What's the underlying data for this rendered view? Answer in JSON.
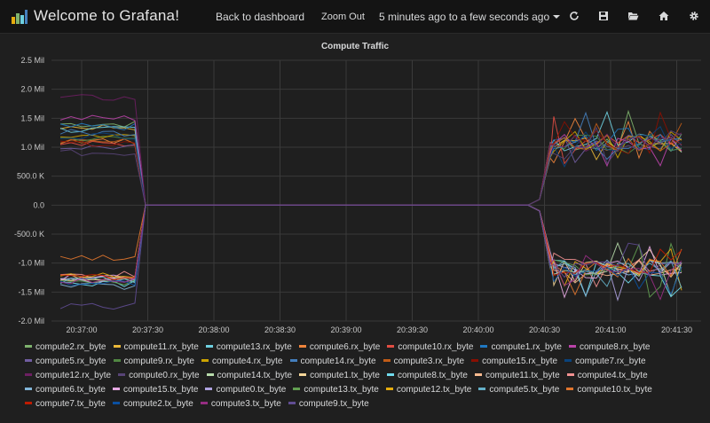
{
  "header": {
    "title": "Welcome to Grafana!",
    "back_label": "Back to dashboard",
    "zoom_label": "Zoom Out",
    "time_range": "5 minutes ago to a few seconds ago",
    "icons": [
      "refresh-icon",
      "save-icon",
      "folder-open-icon",
      "home-icon",
      "gear-icon"
    ]
  },
  "chart_data": {
    "type": "line",
    "title": "Compute Traffic",
    "y_ticks": [
      "2.5 Mil",
      "2.0 Mil",
      "1.5 Mil",
      "1.0 Mil",
      "500.0 K",
      "0.0",
      "-500.0 K",
      "-1.0 Mil",
      "-1.5 Mil",
      "-2.0 Mil"
    ],
    "x_ticks": [
      "20:37:00",
      "20:37:30",
      "20:38:00",
      "20:38:30",
      "20:39:00",
      "20:39:30",
      "20:40:00",
      "20:40:30",
      "20:41:00",
      "20:41:30"
    ],
    "ylim": [
      -2000000,
      2500000
    ],
    "grid": true,
    "legend_placement": "bottom",
    "series": [
      {
        "name": "compute2.rx_byte",
        "color": "#7eb26d",
        "rx": true,
        "level": 1.4
      },
      {
        "name": "compute11.rx_byte",
        "color": "#eab839",
        "rx": true,
        "level": 1.35
      },
      {
        "name": "compute13.rx_byte",
        "color": "#6ed0e0",
        "rx": true,
        "level": 1.3
      },
      {
        "name": "compute6.rx_byte",
        "color": "#ef843c",
        "rx": true,
        "level": 1.1
      },
      {
        "name": "compute10.rx_byte",
        "color": "#e24d42",
        "rx": true,
        "level": 1.05
      },
      {
        "name": "compute1.rx_byte",
        "color": "#1f78c1",
        "rx": true,
        "level": 1.35
      },
      {
        "name": "compute8.rx_byte",
        "color": "#ba43a9",
        "rx": true,
        "level": 1.5
      },
      {
        "name": "compute5.rx_byte",
        "color": "#705da0",
        "rx": true,
        "level": 1.0
      },
      {
        "name": "compute9.rx_byte",
        "color": "#508642",
        "rx": true,
        "level": 1.15
      },
      {
        "name": "compute4.rx_byte",
        "color": "#cca300",
        "rx": true,
        "level": 1.2
      },
      {
        "name": "compute14.rx_byte",
        "color": "#447ebc",
        "rx": true,
        "level": 1.25
      },
      {
        "name": "compute3.rx_byte",
        "color": "#c15c17",
        "rx": true,
        "level": 1.1
      },
      {
        "name": "compute15.rx_byte",
        "color": "#890f02",
        "rx": true,
        "level": 1.05
      },
      {
        "name": "compute7.rx_byte",
        "color": "#0a437c",
        "rx": true,
        "level": 1.2
      },
      {
        "name": "compute12.rx_byte",
        "color": "#6d1f62",
        "rx": true,
        "level": 1.85
      },
      {
        "name": "compute0.rx_byte",
        "color": "#584477",
        "rx": true,
        "level": 0.9
      },
      {
        "name": "compute14.tx_byte",
        "color": "#b7dbab",
        "rx": false,
        "level": 1.3
      },
      {
        "name": "compute1.tx_byte",
        "color": "#f4d598",
        "rx": false,
        "level": 1.25
      },
      {
        "name": "compute8.tx_byte",
        "color": "#70dbed",
        "rx": false,
        "level": 1.35
      },
      {
        "name": "compute11.tx_byte",
        "color": "#f9ba8f",
        "rx": false,
        "level": 1.3
      },
      {
        "name": "compute4.tx_byte",
        "color": "#f29191",
        "rx": false,
        "level": 1.2
      },
      {
        "name": "compute6.tx_byte",
        "color": "#82b5d8",
        "rx": false,
        "level": 1.4
      },
      {
        "name": "compute15.tx_byte",
        "color": "#e5a8e2",
        "rx": false,
        "level": 1.25
      },
      {
        "name": "compute0.tx_byte",
        "color": "#aea2e0",
        "rx": false,
        "level": 1.3
      },
      {
        "name": "compute13.tx_byte",
        "color": "#629e51",
        "rx": false,
        "level": 1.35
      },
      {
        "name": "compute12.tx_byte",
        "color": "#e5ac0e",
        "rx": false,
        "level": 1.2
      },
      {
        "name": "compute5.tx_byte",
        "color": "#64b0c8",
        "rx": false,
        "level": 1.3
      },
      {
        "name": "compute10.tx_byte",
        "color": "#e0752d",
        "rx": false,
        "level": 0.9
      },
      {
        "name": "compute7.tx_byte",
        "color": "#bf1b00",
        "rx": false,
        "level": 1.25
      },
      {
        "name": "compute2.tx_byte",
        "color": "#0a50a1",
        "rx": false,
        "level": 1.35
      },
      {
        "name": "compute3.tx_byte",
        "color": "#962d82",
        "rx": false,
        "level": 1.3
      },
      {
        "name": "compute9.tx_byte",
        "color": "#614d93",
        "rx": false,
        "level": 1.75
      }
    ]
  }
}
